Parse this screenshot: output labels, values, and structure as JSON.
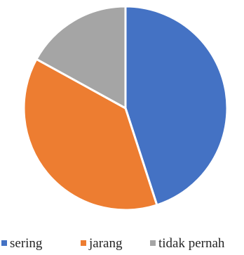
{
  "chart_data": {
    "type": "pie",
    "title": "",
    "categories": [
      "sering",
      "jarang",
      "tidak pernah"
    ],
    "values": [
      45,
      38,
      17
    ],
    "colors": [
      "#4472c4",
      "#ed7d31",
      "#a5a5a5"
    ],
    "start_angle_deg": 0,
    "direction": "clockwise",
    "legend_position": "bottom"
  }
}
